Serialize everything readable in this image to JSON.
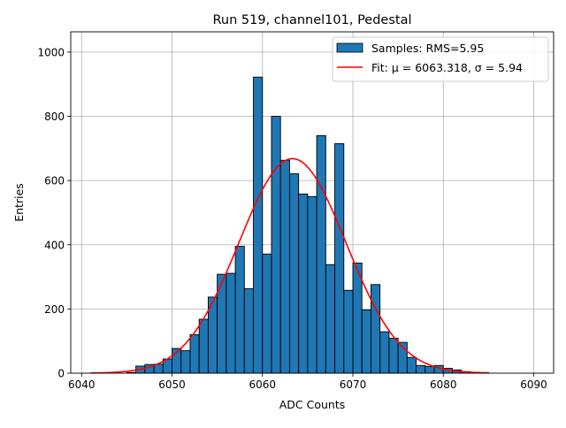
{
  "chart_data": {
    "type": "bar",
    "title": "Run 519, channel101, Pedestal",
    "xlabel": "ADC Counts",
    "ylabel": "Entries",
    "xlim": [
      6038.8,
      6092.2
    ],
    "ylim": [
      0,
      1063
    ],
    "xticks": [
      6040,
      6050,
      6060,
      6070,
      6080,
      6090
    ],
    "yticks": [
      0,
      200,
      400,
      600,
      800,
      1000
    ],
    "grid": true,
    "legend_placement": "top-right",
    "bin_width": 1,
    "bins": [
      6045,
      6046,
      6047,
      6048,
      6049,
      6050,
      6051,
      6052,
      6053,
      6054,
      6055,
      6056,
      6057,
      6058,
      6059,
      6060,
      6061,
      6062,
      6063,
      6064,
      6065,
      6066,
      6067,
      6068,
      6069,
      6070,
      6071,
      6072,
      6073,
      6074,
      6075,
      6076,
      6077,
      6078,
      6079,
      6080,
      6081,
      6082,
      6083,
      6084
    ],
    "values": [
      2,
      22,
      27,
      28,
      44,
      77,
      70,
      120,
      168,
      237,
      308,
      311,
      395,
      263,
      922,
      371,
      800,
      663,
      621,
      558,
      550,
      740,
      338,
      715,
      258,
      343,
      197,
      276,
      129,
      109,
      96,
      49,
      24,
      21,
      24,
      15,
      10,
      5,
      3,
      2
    ],
    "bar_color": "#1f77b4",
    "fit": {
      "mu": 6063.318,
      "sigma": 5.94,
      "amplitude": 668,
      "range": [
        6041,
        6085
      ],
      "color": "#ff0000"
    },
    "legend": [
      {
        "label": "Samples: RMS=5.95",
        "kind": "patch"
      },
      {
        "label": "Fit: μ = 6063.318, σ = 5.94",
        "kind": "line"
      }
    ]
  }
}
